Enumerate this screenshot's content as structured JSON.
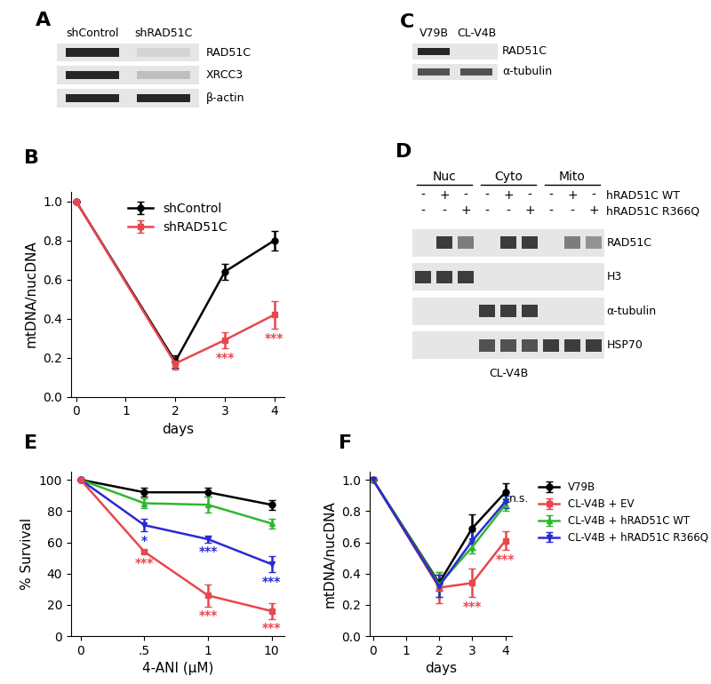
{
  "chart_data": [
    {
      "panel": "B",
      "type": "line",
      "x_label": "days",
      "y_label": "mtDNA/nucDNA",
      "xlim": [
        -0.1,
        4.2
      ],
      "xticks": [
        0,
        1,
        2,
        3,
        4
      ],
      "ylim": [
        0,
        1.05
      ],
      "yticks": [
        0.0,
        0.2,
        0.4,
        0.6,
        0.8,
        1.0
      ],
      "legend": "upper center",
      "series": [
        {
          "name": "shControl",
          "color": "#000000",
          "marker": "o",
          "x": [
            0,
            2,
            3,
            4
          ],
          "values": [
            1.0,
            0.18,
            0.64,
            0.8
          ],
          "errors": [
            0,
            0.03,
            0.04,
            0.05
          ],
          "significance": [
            null,
            null,
            null,
            null
          ]
        },
        {
          "name": "shRAD51C",
          "color": "#e8474e",
          "marker": "s",
          "x": [
            0,
            2,
            3,
            4
          ],
          "values": [
            1.0,
            0.17,
            0.29,
            0.42
          ],
          "errors": [
            0,
            0.03,
            0.04,
            0.07
          ],
          "significance": [
            null,
            null,
            "***",
            "***"
          ]
        }
      ]
    },
    {
      "panel": "E",
      "type": "line",
      "x_label": "4-ANI (μM)",
      "y_label": "% Survival",
      "categories": [
        "0",
        ".5",
        "1",
        "10"
      ],
      "ylim": [
        0,
        105
      ],
      "yticks": [
        0,
        20,
        40,
        60,
        80,
        100
      ],
      "series": [
        {
          "color": "#000000",
          "marker": "o",
          "values": [
            100,
            92,
            92,
            84
          ],
          "errors": [
            0,
            3,
            3,
            3
          ],
          "significance": [
            null,
            null,
            null,
            null
          ]
        },
        {
          "color": "#2eb82e",
          "marker": "^",
          "values": [
            100,
            85,
            84,
            72
          ],
          "errors": [
            0,
            3,
            5,
            3
          ],
          "significance": [
            null,
            null,
            null,
            null
          ]
        },
        {
          "color": "#2a2ad4",
          "marker": "v",
          "values": [
            100,
            71,
            62,
            46
          ],
          "errors": [
            0,
            4,
            2,
            5
          ],
          "significance": [
            null,
            "*",
            "***",
            "***"
          ]
        },
        {
          "color": "#e8474e",
          "marker": "s",
          "values": [
            100,
            54,
            26,
            16
          ],
          "errors": [
            0,
            1,
            7,
            5
          ],
          "significance": [
            null,
            "***",
            "***",
            "***"
          ]
        }
      ]
    },
    {
      "panel": "F",
      "type": "line",
      "x_label": "days",
      "y_label": "mtDNA/nucDNA",
      "xlim": [
        -0.1,
        4.2
      ],
      "xticks": [
        0,
        1,
        2,
        3,
        4
      ],
      "ylim": [
        0,
        1.05
      ],
      "yticks": [
        0.0,
        0.2,
        0.4,
        0.6,
        0.8,
        1.0
      ],
      "legend": "right",
      "annotations": [
        {
          "text": "n.s.",
          "x": 4.12,
          "y": 0.88
        }
      ],
      "series": [
        {
          "name": "V79B",
          "color": "#000000",
          "marker": "o",
          "x": [
            0,
            2,
            3,
            4
          ],
          "values": [
            1.0,
            0.34,
            0.69,
            0.92
          ],
          "errors": [
            0,
            0.05,
            0.09,
            0.06
          ],
          "significance": [
            null,
            null,
            null,
            null
          ]
        },
        {
          "name": "CL-V4B + EV",
          "color": "#e8474e",
          "marker": "s",
          "x": [
            0,
            2,
            3,
            4
          ],
          "values": [
            1.0,
            0.31,
            0.34,
            0.61
          ],
          "errors": [
            0,
            0.1,
            0.09,
            0.06
          ],
          "significance": [
            null,
            null,
            "***",
            "***"
          ]
        },
        {
          "name": "CL-V4B + hRAD51C WT",
          "color": "#2eb82e",
          "marker": "^",
          "x": [
            0,
            2,
            3,
            4
          ],
          "values": [
            1.0,
            0.33,
            0.57,
            0.84
          ],
          "errors": [
            0,
            0.08,
            0.04,
            0.04
          ],
          "significance": [
            null,
            null,
            null,
            null
          ]
        },
        {
          "name": "CL-V4B + hRAD51C R366Q",
          "color": "#2a2ad4",
          "marker": "v",
          "x": [
            0,
            2,
            3,
            4
          ],
          "values": [
            1.0,
            0.32,
            0.61,
            0.86
          ],
          "errors": [
            0,
            0.07,
            0.06,
            0.04
          ],
          "significance": [
            null,
            null,
            null,
            null
          ]
        }
      ]
    }
  ],
  "blots": [
    {
      "panel": "A",
      "lanes": [
        "shControl",
        "shRAD51C"
      ],
      "rows": [
        {
          "name": "RAD51C",
          "bands": [
            1.0,
            0.2
          ]
        },
        {
          "name": "XRCC3",
          "bands": [
            1.0,
            0.3
          ]
        },
        {
          "name": "β-actin",
          "bands": [
            1.0,
            1.0
          ]
        }
      ]
    },
    {
      "panel": "C",
      "lanes": [
        "V79B",
        "CL-V4B"
      ],
      "rows": [
        {
          "name": "RAD51C",
          "bands": [
            1.0,
            0.0
          ]
        },
        {
          "name": "α-tubulin",
          "bands": [
            0.8,
            0.8
          ]
        }
      ]
    },
    {
      "panel": "D",
      "groups": [
        "Nuc",
        "Cyto",
        "Mito"
      ],
      "caption": "CL-V4B",
      "conditions": [
        {
          "name": "hRAD51C WT",
          "signs": [
            "-",
            "+",
            "-",
            "-",
            "+",
            "-",
            "-",
            "+",
            "-"
          ]
        },
        {
          "name": "hRAD51C R366Q",
          "signs": [
            "-",
            "-",
            "+",
            "-",
            "-",
            "+",
            "-",
            "-",
            "+"
          ]
        }
      ],
      "rows": [
        {
          "name": "RAD51C",
          "bands": [
            0,
            0.9,
            0.6,
            0,
            0.9,
            0.9,
            0,
            0.6,
            0.5
          ]
        },
        {
          "name": "H3",
          "bands": [
            0.9,
            0.9,
            0.9,
            0,
            0,
            0,
            0,
            0,
            0
          ]
        },
        {
          "name": "α-tubulin",
          "bands": [
            0,
            0,
            0,
            0.9,
            0.9,
            0.9,
            0,
            0,
            0
          ]
        },
        {
          "name": "HSP70",
          "bands": [
            0,
            0,
            0,
            0.8,
            0.8,
            0.8,
            0.9,
            0.9,
            0.9
          ]
        }
      ]
    }
  ]
}
